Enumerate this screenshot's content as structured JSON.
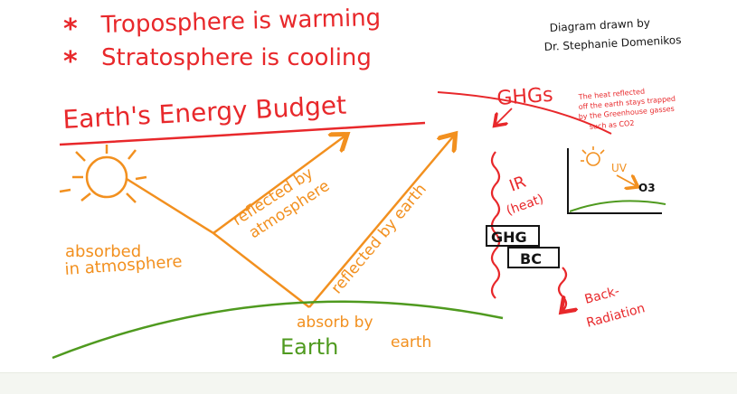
{
  "header": {
    "bullet_1": "Troposphere is warming",
    "bullet_2": "Stratosphere is cooling",
    "bullet_marker": "*",
    "title": "Earth's Energy Budget",
    "credit_line_1": "Diagram drawn by",
    "credit_line_2": "Dr. Stephanie Domenikos"
  },
  "labels": {
    "absorbed_atmosphere_1": "absorbed",
    "absorbed_atmosphere_2": "in atmosphere",
    "reflected_atmosphere_1": "reflected by",
    "reflected_atmosphere_2": "atmosphere",
    "reflected_earth": "reflected by earth",
    "absorb_earth_1": "absorb by",
    "absorb_earth_2": "earth",
    "earth": "Earth",
    "ghgs": "GHGs",
    "ghg_note_1": "The heat reflected",
    "ghg_note_2": "off the earth stays trapped",
    "ghg_note_3": "by the Greenhouse gasses",
    "ghg_note_4": "such as CO2",
    "ir": "IR",
    "heat": "(heat)",
    "ghg_box": "GHG",
    "bc_box": "BC",
    "back_radiation_1": "Back-",
    "back_radiation_2": "Radiation",
    "uv": "UV",
    "ozone": "O3"
  },
  "colors": {
    "red": "#e8282b",
    "orange": "#f2901f",
    "green": "#4f9a1f",
    "black": "#141414"
  },
  "icons": {
    "sun": "sun-icon",
    "small_sun": "small-sun-icon"
  }
}
